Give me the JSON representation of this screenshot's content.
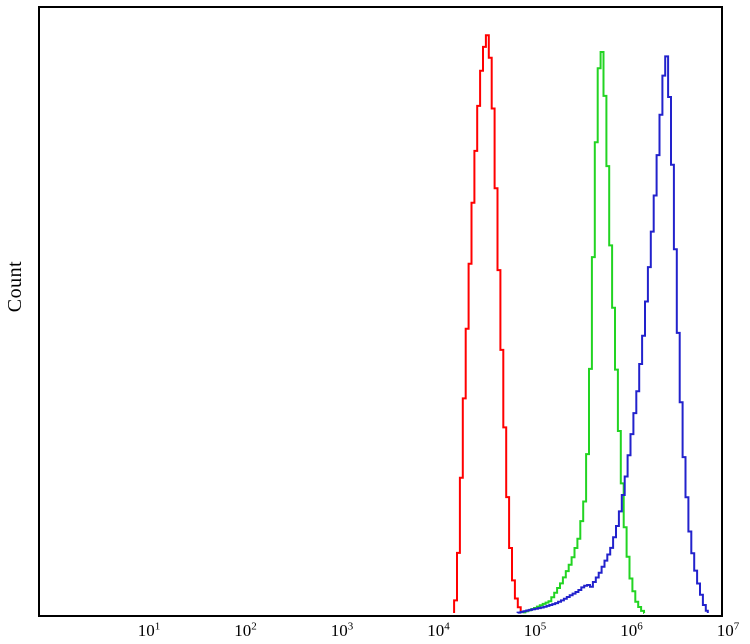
{
  "page": {
    "background": "#ffffff"
  },
  "chart_data": {
    "type": "line",
    "subtype": "flow_cytometry_histogram_overlay",
    "title": "",
    "xlabel": "",
    "ylabel": "Count",
    "x_scale": "log",
    "x_tick_base": "10",
    "x_tick_exponents": [
      1,
      2,
      3,
      4,
      5,
      6,
      7
    ],
    "x_tick_values": [
      10,
      100,
      1000,
      10000,
      100000,
      1000000,
      10000000
    ],
    "xlim": [
      0.72,
      8600000
    ],
    "ylim": [
      0,
      100
    ],
    "y_ticks": [],
    "grid": false,
    "legend": false,
    "axis_color": "#000000",
    "plot_background": "#ffffff",
    "series": [
      {
        "name": "red-histogram",
        "color": "#ff0000",
        "peak_x": 32400,
        "peak_y": 95.6,
        "points": [
          [
            14500,
            0
          ],
          [
            15500,
            4
          ],
          [
            16600,
            15
          ],
          [
            18200,
            33
          ],
          [
            20400,
            52
          ],
          [
            23400,
            72
          ],
          [
            26900,
            87
          ],
          [
            29500,
            93
          ],
          [
            32400,
            95.6
          ],
          [
            34700,
            91
          ],
          [
            37200,
            82
          ],
          [
            40700,
            64
          ],
          [
            44700,
            46
          ],
          [
            49000,
            29
          ],
          [
            53700,
            14
          ],
          [
            58900,
            6
          ],
          [
            64600,
            2
          ],
          [
            72400,
            0
          ]
        ]
      },
      {
        "name": "green-histogram",
        "color": "#22d422",
        "peak_x": 484000,
        "peak_y": 94.1,
        "points": [
          [
            74000,
            0
          ],
          [
            100000,
            0.8
          ],
          [
            145000,
            2
          ],
          [
            190000,
            5
          ],
          [
            240000,
            8.5
          ],
          [
            288000,
            12.5
          ],
          [
            331000,
            19
          ],
          [
            355000,
            28
          ],
          [
            372000,
            38
          ],
          [
            389000,
            50
          ],
          [
            407000,
            62
          ],
          [
            427000,
            76
          ],
          [
            457000,
            89
          ],
          [
            484000,
            94.1
          ],
          [
            513000,
            90
          ],
          [
            550000,
            80
          ],
          [
            603000,
            62
          ],
          [
            676000,
            45
          ],
          [
            759000,
            28
          ],
          [
            832000,
            17
          ],
          [
            891000,
            11
          ],
          [
            1000000,
            5
          ],
          [
            1150000,
            1.5
          ],
          [
            1350000,
            0
          ]
        ]
      },
      {
        "name": "blue-histogram",
        "color": "#2222cc",
        "peak_x": 2290000,
        "peak_y": 92.9,
        "points": [
          [
            66000,
            0
          ],
          [
            89000,
            0.5
          ],
          [
            126000,
            1.0
          ],
          [
            166000,
            1.6
          ],
          [
            200000,
            2.2
          ],
          [
            240000,
            3.0
          ],
          [
            282000,
            3.6
          ],
          [
            316000,
            4.3
          ],
          [
            355000,
            4.7
          ],
          [
            380000,
            4.2
          ],
          [
            407000,
            5.0
          ],
          [
            468000,
            6.5
          ],
          [
            537000,
            8.5
          ],
          [
            617000,
            10.5
          ],
          [
            708000,
            14
          ],
          [
            794000,
            18
          ],
          [
            871000,
            22
          ],
          [
            1000000,
            29
          ],
          [
            1150000,
            36
          ],
          [
            1320000,
            45
          ],
          [
            1510000,
            56
          ],
          [
            1740000,
            68
          ],
          [
            1950000,
            79
          ],
          [
            2140000,
            88
          ],
          [
            2290000,
            92.9
          ],
          [
            2510000,
            84
          ],
          [
            2750000,
            68
          ],
          [
            2950000,
            52
          ],
          [
            3240000,
            36
          ],
          [
            3550000,
            24
          ],
          [
            3980000,
            14
          ],
          [
            4470000,
            8
          ],
          [
            5010000,
            4.5
          ],
          [
            5620000,
            1.5
          ],
          [
            6170000,
            0
          ]
        ]
      }
    ]
  }
}
